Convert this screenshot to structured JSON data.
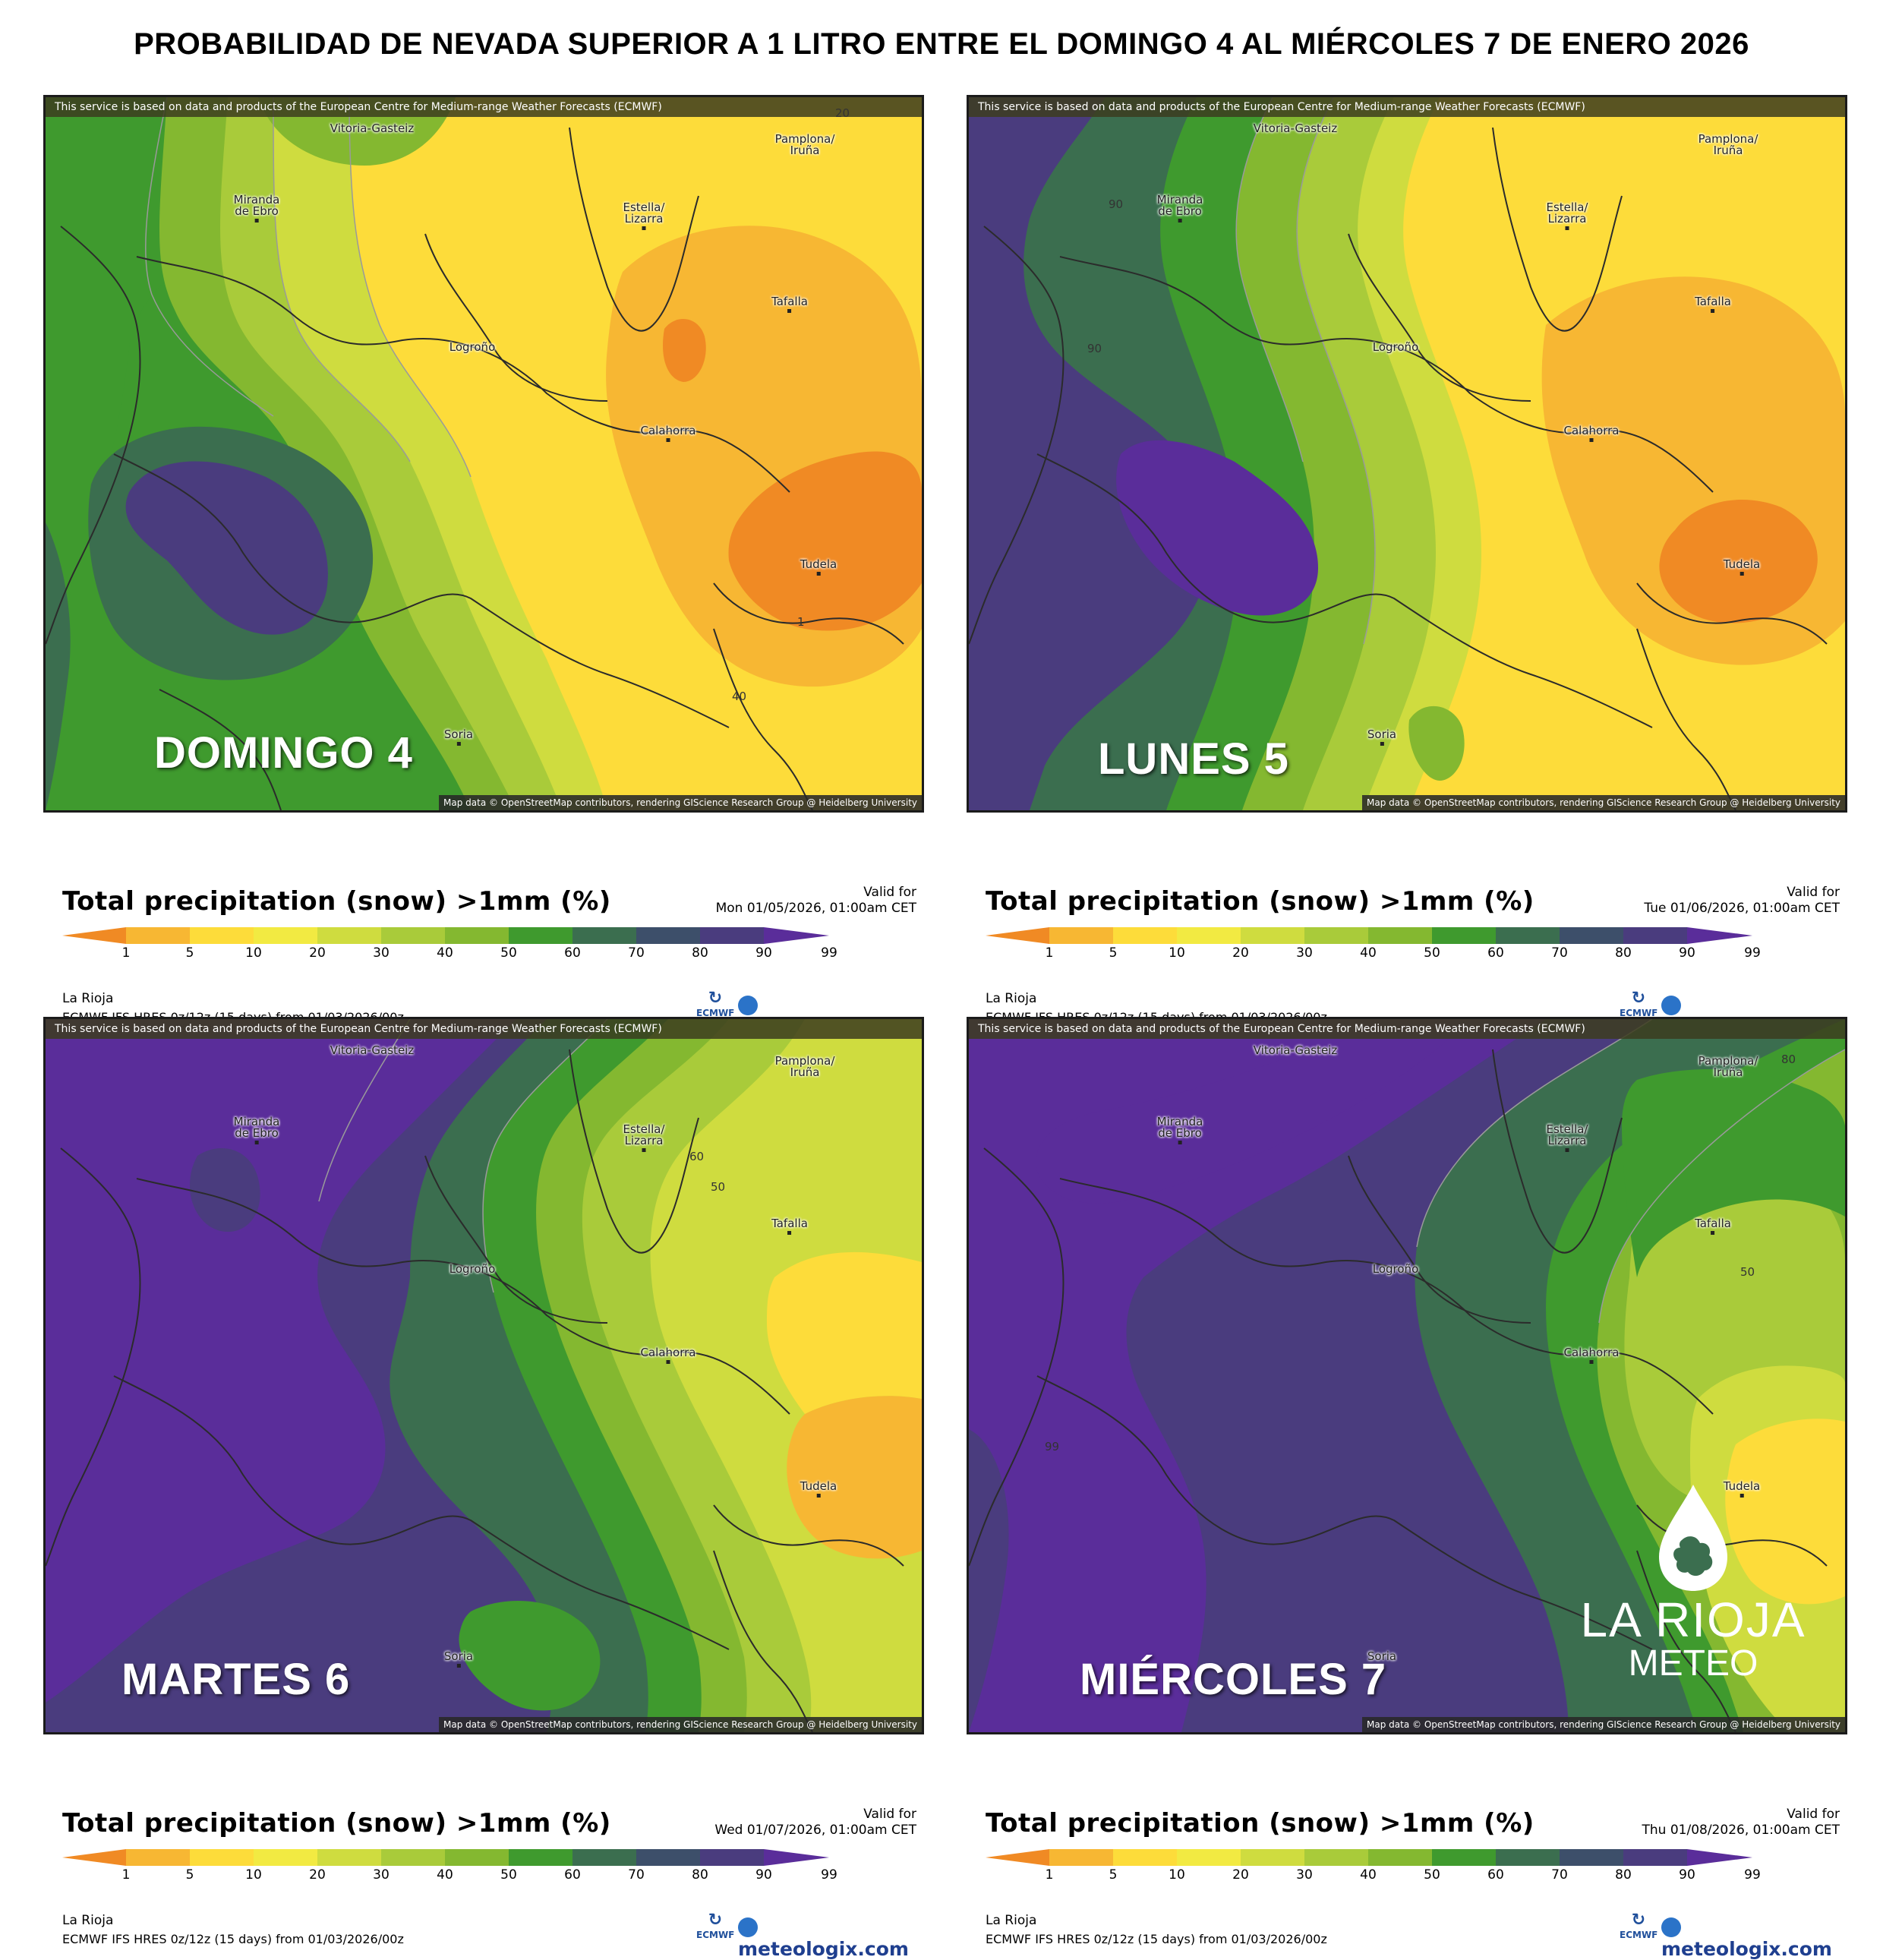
{
  "title": "PROBABILIDAD DE NEVADA SUPERIOR A 1 LITRO ENTRE EL DOMINGO 4 AL MIÉRCOLES 7 DE ENERO 2026",
  "map_credit_top": "This service is based on data and products of the European Centre for Medium-range Weather Forecasts (ECMWF)",
  "map_credit_bottom": "Map data © OpenStreetMap contributors, rendering GIScience Research Group @ Heidelberg University",
  "legend": {
    "title": "Total precipitation (snow) >1mm (%)",
    "valid_label": "Valid for",
    "ticks": [
      "1",
      "5",
      "10",
      "20",
      "30",
      "40",
      "50",
      "60",
      "70",
      "80",
      "90",
      "99"
    ],
    "colors": [
      "#f08a24",
      "#f7b733",
      "#fddc3a",
      "#f2ea42",
      "#cfdc3f",
      "#a9cb3a",
      "#84b830",
      "#3f9a2e",
      "#3b6e4f",
      "#3d4f6a",
      "#4a3c7e",
      "#5a2d9a"
    ],
    "region": "La Rioja",
    "model": "ECMWF IFS HRES 0z/12z (15 days) from  01/03/2026/00z",
    "ecmwf": "ECMWF",
    "brand": "meteologix.com"
  },
  "cities": {
    "vitoria": "Vitoria-Gasteiz",
    "miranda_1": "Miranda",
    "miranda_2": "de Ebro",
    "pamplona_1": "Pamplona/",
    "pamplona_2": "Iruña",
    "estella_1": "Estella/",
    "estella_2": "Lizarra",
    "tafalla": "Tafalla",
    "logrono": "Logroño",
    "calahorra": "Calahorra",
    "tudela": "Tudela",
    "soria": "Soria"
  },
  "panels": [
    {
      "day": "DOMINGO 4",
      "valid": "Mon 01/05/2026, 01:00am CET",
      "contour_labels": [
        "20",
        "1",
        "40"
      ]
    },
    {
      "day": "LUNES 5",
      "valid": "Tue 01/06/2026, 01:00am CET",
      "contour_labels": [
        "90",
        "90"
      ]
    },
    {
      "day": "MARTES 6",
      "valid": "Wed 01/07/2026, 01:00am CET",
      "contour_labels": [
        "60",
        "50"
      ]
    },
    {
      "day": "MIÉRCOLES 7",
      "valid": "Thu 01/08/2026, 01:00am CET",
      "contour_labels": [
        "80",
        "50",
        "99"
      ]
    }
  ],
  "logo": {
    "name": "LA RIOJA",
    "sub": "METEO"
  }
}
